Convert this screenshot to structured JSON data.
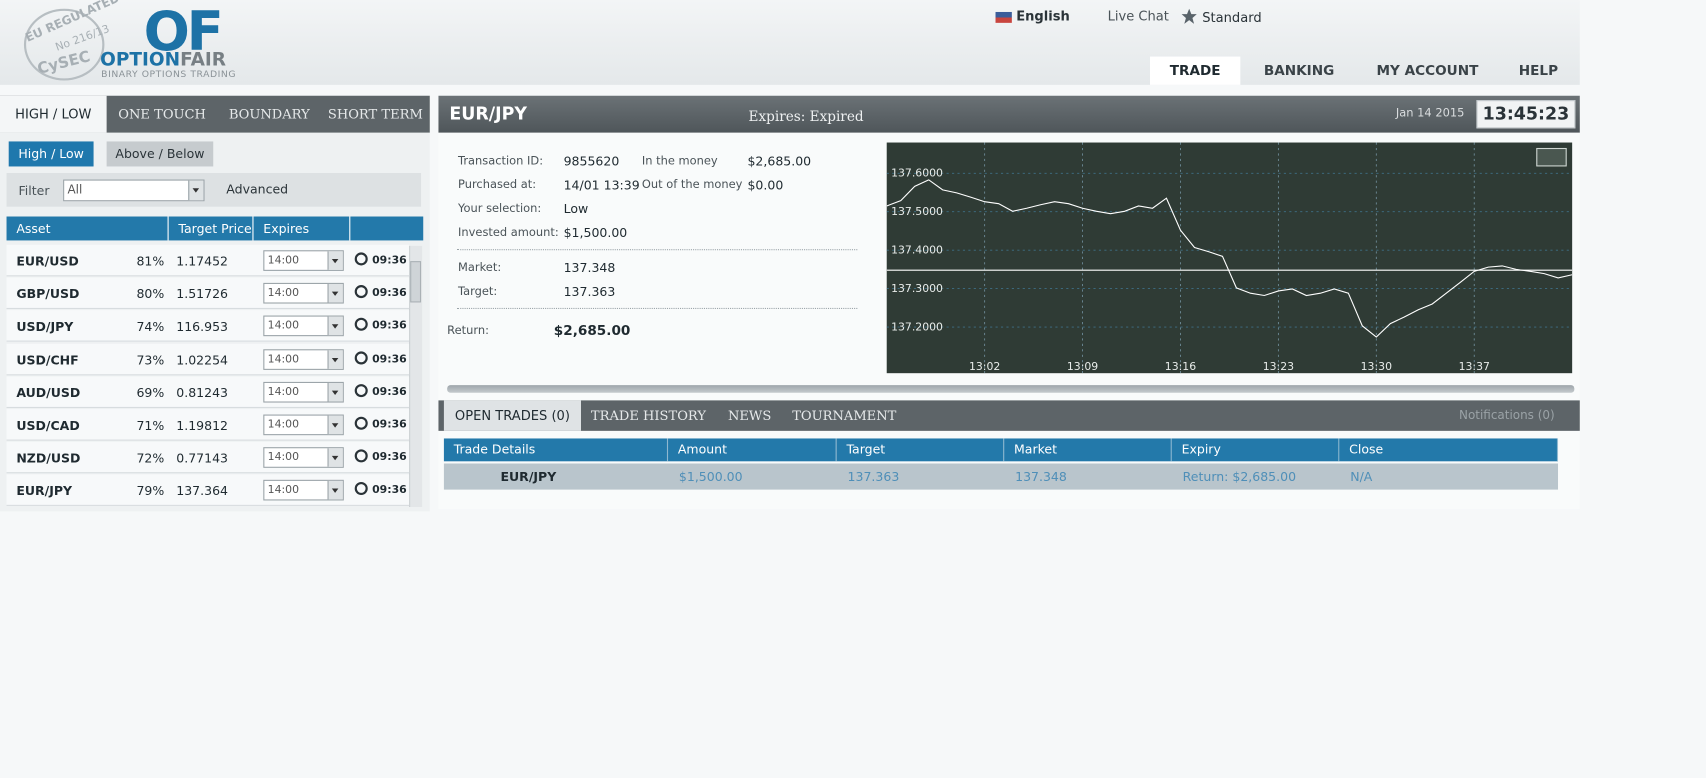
{
  "header": {
    "badge_top": "EU REGULATED",
    "badge_number": "No 216/13",
    "badge_bottom": "CySEC",
    "logo_mark": "OF",
    "logo_option": "OPTION",
    "logo_fair": "FAIR",
    "logo_tagline": "BINARY OPTIONS TRADING",
    "language": "English",
    "live_chat": "Live Chat",
    "account_type": "Standard",
    "nav": [
      "TRADE",
      "BANKING",
      "MY ACCOUNT",
      "HELP"
    ]
  },
  "option_tabs": [
    "HIGH / LOW",
    "ONE TOUCH",
    "BOUNDARY",
    "SHORT TERM"
  ],
  "sub_tabs": [
    "High / Low",
    "Above / Below"
  ],
  "filter": {
    "label": "Filter",
    "value": "All",
    "advanced": "Advanced"
  },
  "asset_table": {
    "columns": [
      "Asset",
      "Target Price",
      "Expires"
    ],
    "rows": [
      [
        "EUR/USD",
        "81%",
        "1.17452",
        "14:00",
        "09:36"
      ],
      [
        "GBP/USD",
        "80%",
        "1.51726",
        "14:00",
        "09:36"
      ],
      [
        "USD/JPY",
        "74%",
        "116.953",
        "14:00",
        "09:36"
      ],
      [
        "USD/CHF",
        "73%",
        "1.02254",
        "14:00",
        "09:36"
      ],
      [
        "AUD/USD",
        "69%",
        "0.81243",
        "14:00",
        "09:36"
      ],
      [
        "USD/CAD",
        "71%",
        "1.19812",
        "14:00",
        "09:36"
      ],
      [
        "NZD/USD",
        "72%",
        "0.77143",
        "14:00",
        "09:36"
      ],
      [
        "EUR/JPY",
        "79%",
        "137.364",
        "14:00",
        "09:36"
      ]
    ]
  },
  "trade_panel": {
    "asset": "EUR/JPY",
    "expires_label": "Expires:",
    "expires_value": "Expired",
    "date": "Jan 14 2015",
    "clock": "13:45:23"
  },
  "details": {
    "left": [
      {
        "label": "Transaction ID:",
        "value": "9855620"
      },
      {
        "label": "Purchased at:",
        "value": "14/01 13:39"
      },
      {
        "label": "Your selection:",
        "value": "Low"
      },
      {
        "label": "Invested amount:",
        "value": "$1,500.00"
      }
    ],
    "right": [
      {
        "label": "In the money",
        "value": "$2,685.00"
      },
      {
        "label": "Out of the money",
        "value": "$0.00"
      }
    ],
    "prices": [
      {
        "label": "Market:",
        "value": "137.348"
      },
      {
        "label": "Target:",
        "value": "137.363"
      }
    ],
    "return": {
      "label": "Return:",
      "value": "$2,685.00"
    }
  },
  "chart": {
    "type": "line",
    "color": "#ffffff",
    "x": [
      "12:55",
      "12:56",
      "12:57",
      "12:58",
      "12:59",
      "13:00",
      "13:01",
      "13:02",
      "13:03",
      "13:04",
      "13:05",
      "13:06",
      "13:07",
      "13:08",
      "13:09",
      "13:10",
      "13:11",
      "13:12",
      "13:13",
      "13:14",
      "13:15",
      "13:16",
      "13:17",
      "13:18",
      "13:19",
      "13:20",
      "13:21",
      "13:22",
      "13:23",
      "13:24",
      "13:25",
      "13:26",
      "13:27",
      "13:28",
      "13:29",
      "13:30",
      "13:31",
      "13:32",
      "13:33",
      "13:34",
      "13:35",
      "13:36",
      "13:37",
      "13:38",
      "13:39",
      "13:40",
      "13:41",
      "13:42",
      "13:43",
      "13:44"
    ],
    "values": [
      137.515,
      137.529,
      137.566,
      137.583,
      137.557,
      137.549,
      137.538,
      137.526,
      137.521,
      137.501,
      137.509,
      137.518,
      137.526,
      137.521,
      137.509,
      137.501,
      137.495,
      137.501,
      137.515,
      137.509,
      137.535,
      137.452,
      137.407,
      137.396,
      137.384,
      137.302,
      137.288,
      137.282,
      137.294,
      137.299,
      137.282,
      137.288,
      137.299,
      137.288,
      137.203,
      137.174,
      137.209,
      137.226,
      137.245,
      137.26,
      137.288,
      137.316,
      137.345,
      137.356,
      137.359,
      137.35,
      137.345,
      137.339,
      137.328,
      137.336
    ],
    "market_line": 137.348,
    "ylim": [
      137.08,
      137.68
    ],
    "yticks": [
      {
        "value": 137.2,
        "label": "137.2000"
      },
      {
        "value": 137.3,
        "label": "137.3000"
      },
      {
        "value": 137.4,
        "label": "137.4000"
      },
      {
        "value": 137.5,
        "label": "137.5000"
      },
      {
        "value": 137.6,
        "label": "137.6000"
      }
    ],
    "xticks": [
      "13:02",
      "13:09",
      "13:16",
      "13:23",
      "13:30",
      "13:37"
    ],
    "grid": true
  },
  "bottom_tabs": [
    "OPEN TRADES (0)",
    "TRADE HISTORY",
    "NEWS",
    "TOURNAMENT"
  ],
  "notifications": "Notifications (0)",
  "open_trades": {
    "columns": [
      "Trade Details",
      "Amount",
      "Target",
      "Market",
      "Expiry",
      "Close"
    ],
    "rows": [
      [
        "EUR/JPY",
        "$1,500.00",
        "137.363",
        "137.348",
        "Return: $2,685.00",
        "N/A"
      ]
    ]
  }
}
